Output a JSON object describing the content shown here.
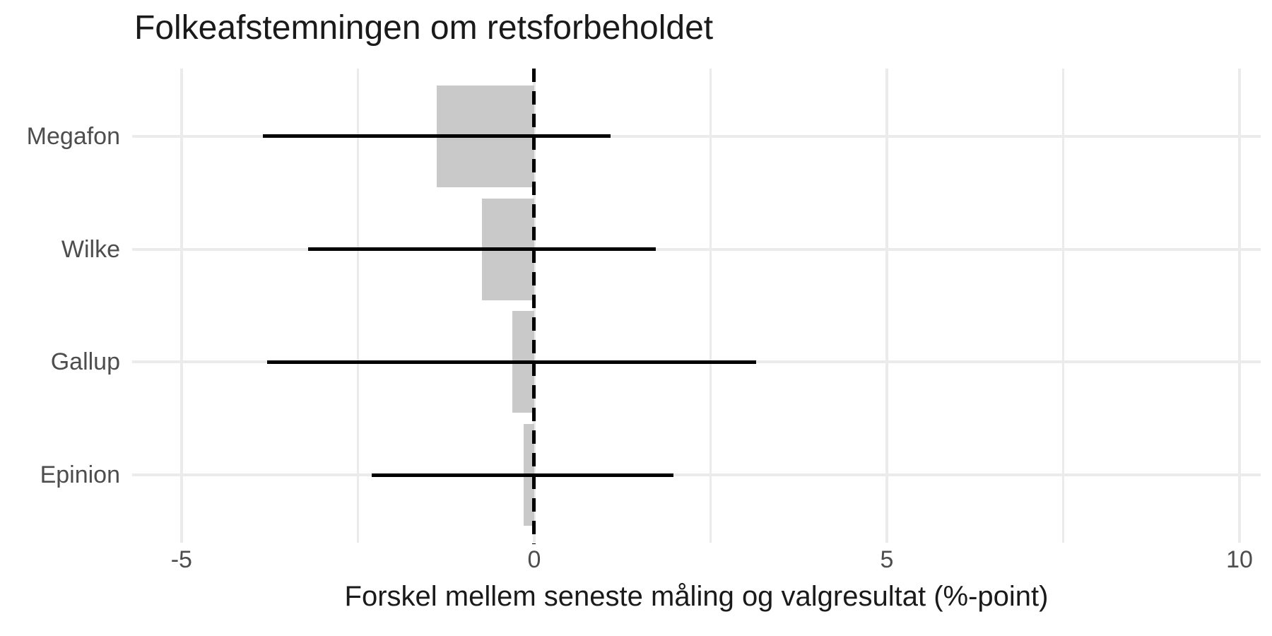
{
  "chart_data": {
    "type": "bar",
    "orientation": "horizontal",
    "title": "Folkeafstemningen om retsforbeholdet",
    "xlabel": "Forskel mellem seneste måling og valgresultat (%-point)",
    "categories": [
      "Megafon",
      "Wilke",
      "Gallup",
      "Epinion"
    ],
    "values": [
      -1.38,
      -0.74,
      -0.31,
      -0.15
    ],
    "ci_low": [
      -3.85,
      -3.21,
      -3.79,
      -2.3
    ],
    "ci_high": [
      1.08,
      1.72,
      3.15,
      1.97
    ],
    "x_ticks": [
      -5,
      0,
      5,
      10
    ],
    "x_tick_labels": [
      "-5",
      "0",
      "5",
      "10"
    ],
    "x_minor_ticks": [
      -2.5,
      2.5,
      7.5
    ],
    "xlim": [
      -5.7,
      10.3
    ],
    "reference_line_x": 0,
    "reference_line_style": "dashed",
    "grid": true,
    "legend": "none",
    "bar_color": "#c9c9c9",
    "error_bar_color": "#000000",
    "grid_color": "#ebebeb",
    "axis_text_color": "#4d4d4d",
    "title_color": "#1a1a1a",
    "background_color": "#ffffff"
  }
}
